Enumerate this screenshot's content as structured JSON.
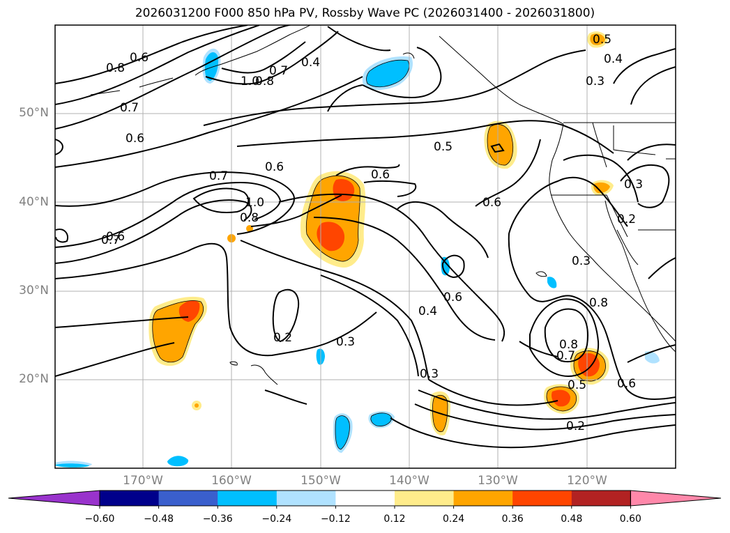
{
  "title": "2026031200 F000 850 hPa PV, Rossby Wave PC (2026031400 - 2026031800)",
  "map": {
    "lon_range": [
      -180,
      -110
    ],
    "lat_range": [
      10,
      60
    ],
    "lat_ticks": [
      {
        "value": 20,
        "label": "20°N"
      },
      {
        "value": 30,
        "label": "30°N"
      },
      {
        "value": 40,
        "label": "40°N"
      },
      {
        "value": 50,
        "label": "50°N"
      }
    ],
    "lon_ticks": [
      {
        "value": -170,
        "label": "170°W"
      },
      {
        "value": -160,
        "label": "160°W"
      },
      {
        "value": -150,
        "label": "150°W"
      },
      {
        "value": -140,
        "label": "140°W"
      },
      {
        "value": -130,
        "label": "130°W"
      },
      {
        "value": -120,
        "label": "120°W"
      }
    ],
    "contour_labels": [
      "0.2",
      "0.3",
      "0.4",
      "0.5",
      "0.6",
      "0.7",
      "0.8",
      "1.0"
    ]
  },
  "colorbar": {
    "ticks": [
      "−0.60",
      "−0.48",
      "−0.36",
      "−0.24",
      "−0.12",
      "0.12",
      "0.24",
      "0.36",
      "0.48",
      "0.60"
    ],
    "colors": [
      "#9933cc",
      "#00008b",
      "#3a5fcd",
      "#00bfff",
      "#b0e2ff",
      "#ffffff",
      "#ffec8b",
      "#ffa500",
      "#ff4500",
      "#b22222",
      "#ff88aa"
    ]
  },
  "colors": {
    "pos_light": "#ffec8b",
    "pos_mid": "#ffa500",
    "pos_strong": "#ff4500",
    "neg_light": "#b0e2ff",
    "neg_mid": "#00bfff",
    "neg_strong": "#3a5fcd"
  }
}
